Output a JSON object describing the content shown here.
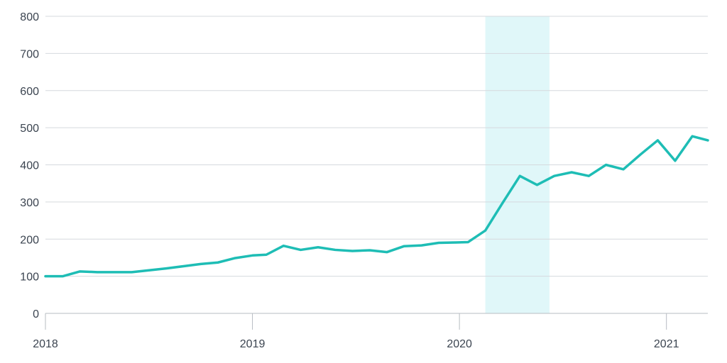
{
  "chart_data": {
    "type": "line",
    "title": "",
    "xlabel": "",
    "ylabel": "",
    "grid": "horizontal",
    "ylim": [
      0,
      800
    ],
    "xlim": [
      2018.0,
      2021.2
    ],
    "y_ticks": [
      0,
      100,
      200,
      300,
      400,
      500,
      600,
      700,
      800
    ],
    "y_tick_labels": [
      "0",
      "100",
      "200",
      "300",
      "400",
      "500",
      "600",
      "700",
      "800"
    ],
    "x_ticks": [
      2018,
      2019,
      2020,
      2021
    ],
    "x_tick_labels": [
      "2018",
      "2019",
      "2020",
      "2021"
    ],
    "highlight_band": {
      "x_start": 2020.125,
      "x_end": 2020.435,
      "color": "#e0f7f9"
    },
    "series": [
      {
        "color": "#1ebdb5",
        "x": [
          2018.0,
          2018.083,
          2018.167,
          2018.25,
          2018.333,
          2018.417,
          2018.5,
          2018.583,
          2018.667,
          2018.75,
          2018.833,
          2018.917,
          2019.0,
          2019.067,
          2019.15,
          2019.233,
          2019.317,
          2019.4,
          2019.483,
          2019.567,
          2019.65,
          2019.733,
          2019.817,
          2019.9,
          2019.983,
          2020.042,
          2020.125,
          2020.208,
          2020.292,
          2020.375,
          2020.458,
          2020.542,
          2020.625,
          2020.708,
          2020.792,
          2020.875,
          2020.958,
          2021.042,
          2021.125,
          2021.2
        ],
        "values": [
          100,
          100,
          113,
          111,
          111,
          111,
          116,
          121,
          127,
          133,
          137,
          149,
          156,
          158,
          182,
          171,
          178,
          171,
          168,
          170,
          165,
          181,
          183,
          190,
          191,
          192,
          223,
          297,
          370,
          346,
          370,
          380,
          370,
          400,
          388,
          428,
          466,
          411,
          477,
          466
        ]
      }
    ]
  }
}
